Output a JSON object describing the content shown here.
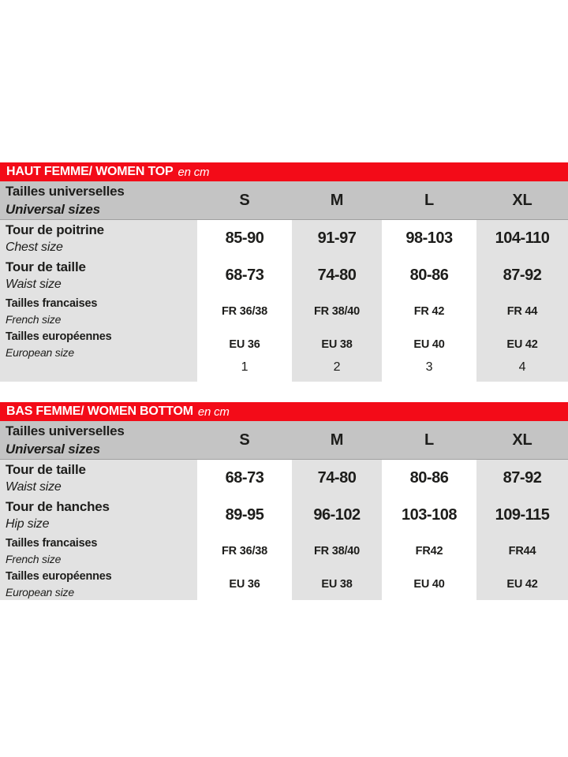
{
  "colors": {
    "header_red": "#f30b18",
    "size_header_gray": "#c4c4c4",
    "band_gray": "#e2e2e2",
    "band_white": "#ffffff",
    "text": "#1d1d1b",
    "title_text": "#ffffff"
  },
  "tables": [
    {
      "title": "HAUT FEMME/ WOMEN TOP",
      "unit": "en cm",
      "header": {
        "label_fr": "Tailles universelles",
        "label_en": "Universal sizes",
        "sizes": [
          "S",
          "M",
          "L",
          "XL"
        ]
      },
      "rows": [
        {
          "label_fr": "Tour de poitrine",
          "label_en": "Chest size",
          "values": [
            "85-90",
            "91-97",
            "98-103",
            "104-110"
          ]
        },
        {
          "label_fr": "Tour de taille",
          "label_en": "Waist  size",
          "values": [
            "68-73",
            "74-80",
            "80-86",
            "87-92"
          ]
        },
        {
          "label_fr": "Tailles francaises",
          "label_en": "French  size",
          "values": [
            "FR 36/38",
            "FR 38/40",
            "FR 42",
            "FR 44"
          ]
        },
        {
          "label_fr": "Tailles européennes",
          "label_en": "European size",
          "values": [
            "EU 36",
            "EU 38",
            "EU 40",
            "EU 42"
          ]
        },
        {
          "label_fr": "",
          "label_en": "",
          "values": [
            "1",
            "2",
            "3",
            "4"
          ]
        }
      ]
    },
    {
      "title": "BAS FEMME/ WOMEN BOTTOM",
      "unit": "en cm",
      "header": {
        "label_fr": "Tailles universelles",
        "label_en": "Universal sizes",
        "sizes": [
          "S",
          "M",
          "L",
          "XL"
        ]
      },
      "rows": [
        {
          "label_fr": "Tour de taille",
          "label_en": "Waist  size",
          "values": [
            "68-73",
            "74-80",
            "80-86",
            "87-92"
          ]
        },
        {
          "label_fr": "Tour de hanches",
          "label_en": "Hip  size",
          "values": [
            "89-95",
            "96-102",
            "103-108",
            "109-115"
          ]
        },
        {
          "label_fr": "Tailles francaises",
          "label_en": "French  size",
          "values": [
            "FR 36/38",
            "FR 38/40",
            "FR42",
            "FR44"
          ]
        },
        {
          "label_fr": "Tailles européennes",
          "label_en": "European size",
          "values": [
            "EU 36",
            "EU 38",
            "EU 40",
            "EU 42"
          ]
        }
      ]
    }
  ]
}
